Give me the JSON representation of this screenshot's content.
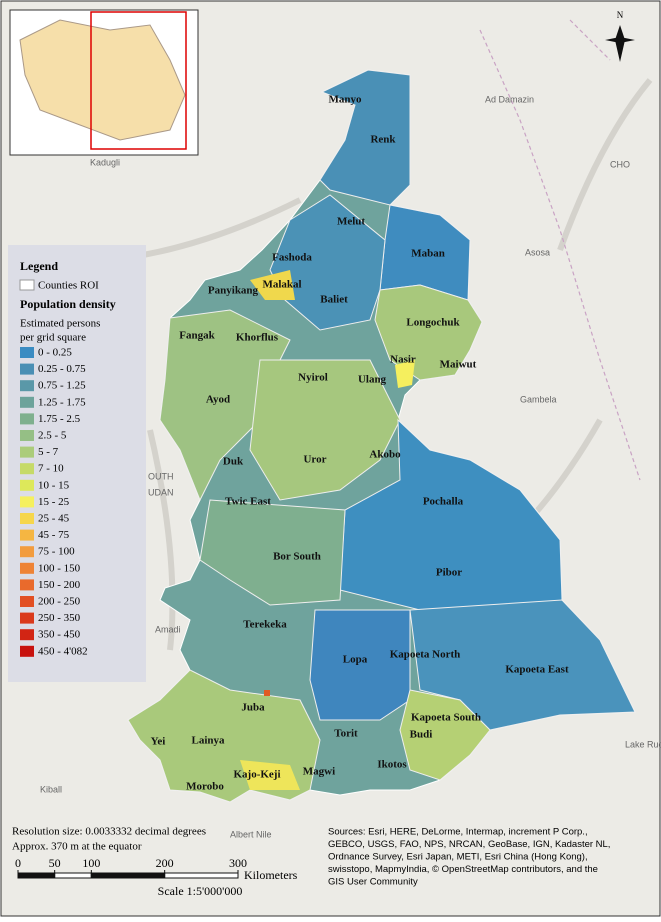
{
  "north_arrow": "N",
  "counties": [
    "Manyo",
    "Renk",
    "Melut",
    "Maban",
    "Fashoda",
    "Panyikang",
    "Malakal",
    "Baliet",
    "Longochuk",
    "Fangak",
    "Khorflus",
    "Nasir",
    "Maiwut",
    "Nyirol",
    "Ulang",
    "Ayod",
    "Akobo",
    "Duk",
    "Uror",
    "Twic East",
    "Pochalla",
    "Bor South",
    "Pibor",
    "Terekeka",
    "Lopa",
    "Kapoeta North",
    "Kapoeta East",
    "Juba",
    "Kapoeta South",
    "Budi",
    "Yei",
    "Lainya",
    "Torit",
    "Ikotos",
    "Magwi",
    "Kajo-Keji",
    "Morobo"
  ],
  "places": [
    "Ad Damazin",
    "Kadugli",
    "Asosa",
    "Gambela",
    "Amadi",
    "OUTH",
    "UDAN",
    "CHO",
    "Kiball",
    "Albert Nile",
    "Lake Rudo"
  ],
  "legend": {
    "title": "Legend",
    "roi": "Counties ROI",
    "heading": "Population density",
    "subheading": [
      "Estimated persons",
      "per grid square"
    ],
    "classes": [
      {
        "label": "0 - 0.25",
        "color": "#3b8cc2"
      },
      {
        "label": "0.25 - 0.75",
        "color": "#4a8fb4"
      },
      {
        "label": "0.75 - 1.25",
        "color": "#5a98a8"
      },
      {
        "label": "1.25 - 1.75",
        "color": "#6da39b"
      },
      {
        "label": "1.75 - 2.5",
        "color": "#7fb08e"
      },
      {
        "label": "2.5 - 5",
        "color": "#95bf85"
      },
      {
        "label": "5 - 7",
        "color": "#abcc7a"
      },
      {
        "label": "7 - 10",
        "color": "#c6da68"
      },
      {
        "label": "10 - 15",
        "color": "#dde85a"
      },
      {
        "label": "15 - 25",
        "color": "#f5f05e"
      },
      {
        "label": "25 - 45",
        "color": "#f6d64b"
      },
      {
        "label": "45 - 75",
        "color": "#f5b642"
      },
      {
        "label": "75 - 100",
        "color": "#f29c3e"
      },
      {
        "label": "100 - 150",
        "color": "#ee8336"
      },
      {
        "label": "150 - 200",
        "color": "#e96a2c"
      },
      {
        "label": "200 - 250",
        "color": "#e24f23"
      },
      {
        "label": "250 - 350",
        "color": "#da3a1c"
      },
      {
        "label": "350 - 450",
        "color": "#d22514"
      },
      {
        "label": "450 - 4'082",
        "color": "#c8120e"
      }
    ]
  },
  "resolution": [
    "Resolution size: 0.0033332 decimal degrees",
    "Approx. 370 m at the equator"
  ],
  "scale_bar": {
    "ticks": [
      0,
      50,
      100,
      200,
      300
    ],
    "unit": "Kilometers",
    "scale": "Scale 1:5'000'000"
  },
  "sources": [
    "Sources: Esri, HERE, DeLorme, Intermap, increment P Corp.,",
    "GEBCO, USGS, FAO, NPS, NRCAN, GeoBase, IGN, Kadaster NL,",
    "Ordnance Survey, Esri Japan, METI, Esri China (Hong Kong),",
    "swisstopo, MapmyIndia, © OpenStreetMap contributors, and the",
    "GIS User Community"
  ]
}
